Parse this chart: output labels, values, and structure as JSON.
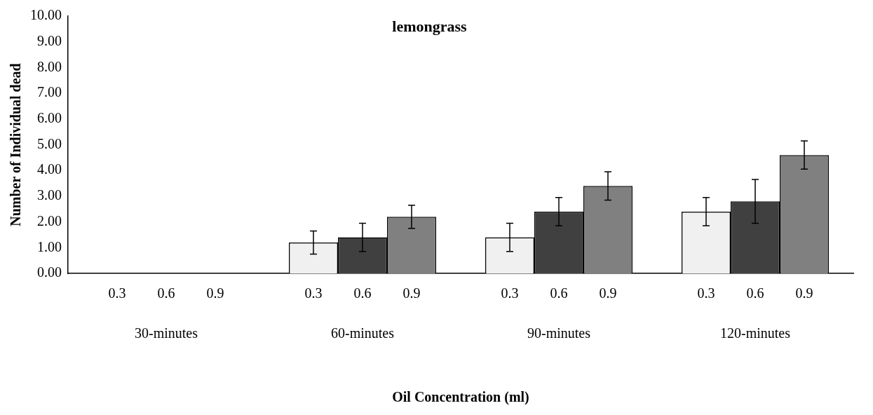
{
  "chart_data": {
    "type": "bar",
    "title": "lemongrass",
    "xlabel": "Oil Concentration (ml)",
    "ylabel": "Number of Individual dead",
    "categories": [
      "30-minutes",
      "60-minutes",
      "90-minutes",
      "120-minutes"
    ],
    "series": [
      {
        "name": "0.3",
        "color": "#f0f0f0",
        "values": [
          0,
          1.2,
          1.4,
          2.4
        ],
        "errors": [
          null,
          0.45,
          0.55,
          0.55
        ]
      },
      {
        "name": "0.6",
        "color": "#404040",
        "values": [
          0,
          1.4,
          2.4,
          2.8
        ],
        "errors": [
          null,
          0.55,
          0.55,
          0.85
        ]
      },
      {
        "name": "0.9",
        "color": "#808080",
        "values": [
          0,
          2.2,
          3.4,
          4.6
        ],
        "errors": [
          null,
          0.45,
          0.55,
          0.55
        ]
      }
    ],
    "ylim": [
      0,
      10
    ],
    "yticks": [
      {
        "value": 0,
        "label": "0.00"
      },
      {
        "value": 1,
        "label": "1.00"
      },
      {
        "value": 2,
        "label": "2.00"
      },
      {
        "value": 3,
        "label": "3.00"
      },
      {
        "value": 4,
        "label": "4.00"
      },
      {
        "value": 5,
        "label": "5.00"
      },
      {
        "value": 6,
        "label": "6.00"
      },
      {
        "value": 7,
        "label": "7.00"
      },
      {
        "value": 8,
        "label": "8.00"
      },
      {
        "value": 9,
        "label": "9.00"
      },
      {
        "value": 10,
        "label": "10.00"
      }
    ],
    "grid": false,
    "legend": false
  }
}
